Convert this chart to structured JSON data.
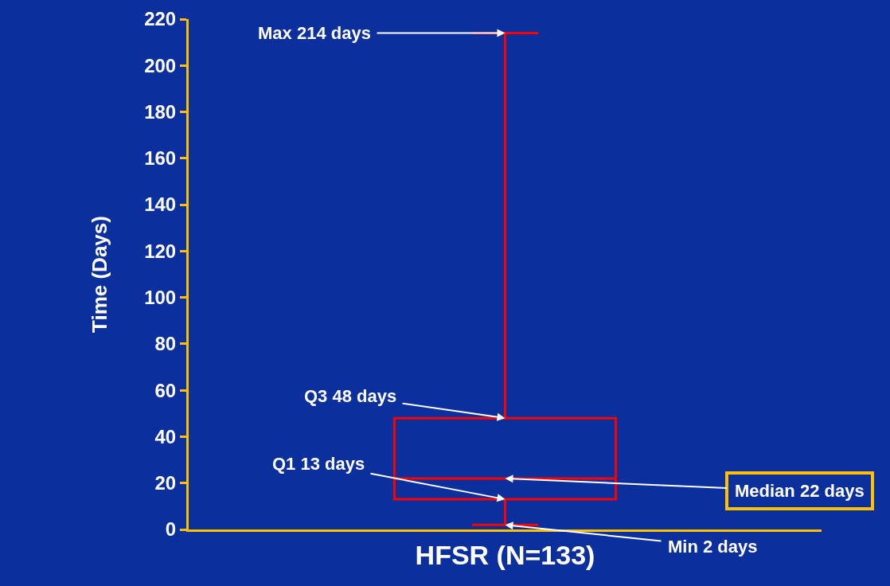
{
  "chart_data": {
    "type": "box",
    "ylabel": "Time (Days)",
    "categories": [
      "HFSR (N=133)"
    ],
    "series": [
      {
        "color": "#ff0000",
        "boxes": [
          {
            "low": 2,
            "q1": 13,
            "median": 22,
            "q3": 48,
            "high": 214
          }
        ]
      }
    ],
    "ylim": [
      0,
      220
    ],
    "yticks": [
      0,
      20,
      40,
      60,
      80,
      100,
      120,
      140,
      160,
      180,
      200,
      220
    ],
    "grid": false,
    "annotations": [
      {
        "text": "Max 214 days",
        "x": "HFSR (N=133)",
        "y": 214
      },
      {
        "text": "Q3 48 days",
        "x": "HFSR (N=133)",
        "y": 48
      },
      {
        "text": "Q1 13 days",
        "x": "HFSR (N=133)",
        "y": 13
      },
      {
        "text": "Median 22 days",
        "x": "HFSR (N=133)",
        "y": 22
      },
      {
        "text": "Min 2 days",
        "x": "HFSR (N=133)",
        "y": 2
      }
    ]
  }
}
